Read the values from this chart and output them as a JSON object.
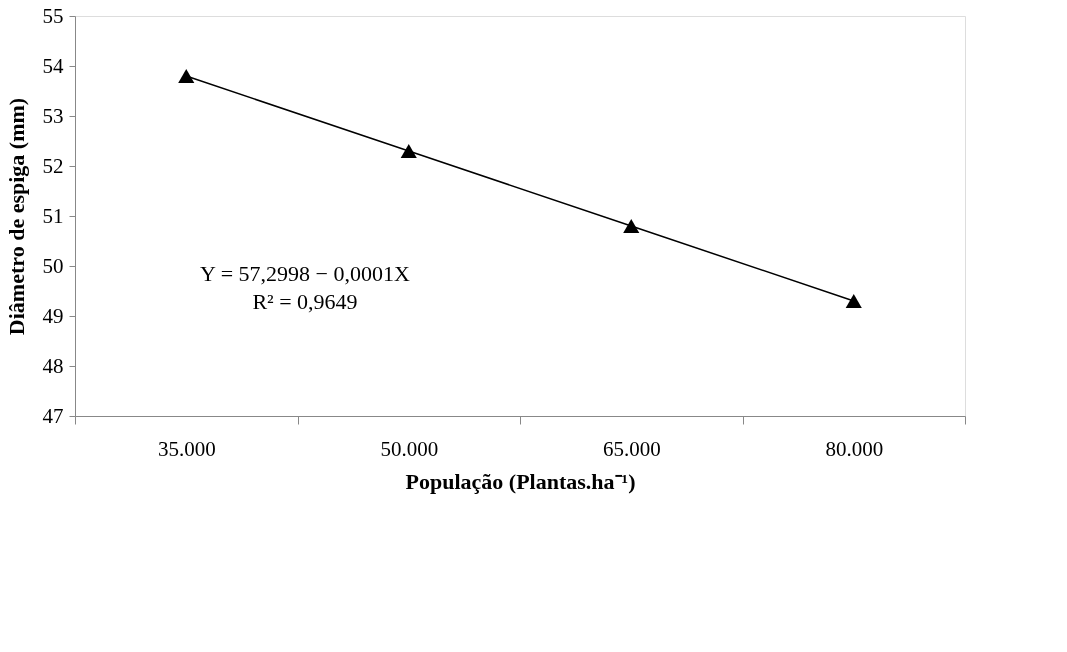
{
  "chart_data": {
    "type": "line",
    "xlabel": "População (Plantas.ha⁻¹)",
    "ylabel": "Diâmetro de espiga (mm)",
    "categories": [
      "35.000",
      "50.000",
      "65.000",
      "80.000"
    ],
    "series": [
      {
        "color": "#000000",
        "values": [
          53.8,
          52.3,
          50.8,
          49.3
        ]
      }
    ],
    "ylim": [
      47,
      55
    ],
    "yticks": [
      47,
      48,
      49,
      50,
      51,
      52,
      53,
      54,
      55
    ],
    "marker": "triangle",
    "line_style": "solid",
    "grid": false,
    "annotations": [
      "Y = 57,2998 − 0,0001X",
      "R² = 0,9649"
    ]
  }
}
